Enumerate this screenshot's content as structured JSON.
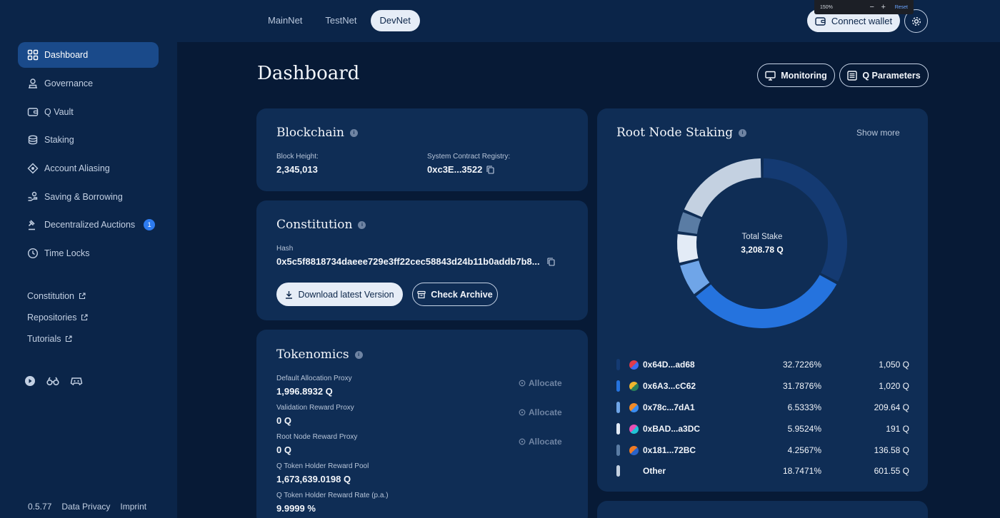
{
  "zoom": {
    "level": "150%",
    "minus": "−",
    "plus": "+",
    "reset": "Reset"
  },
  "networks": [
    "MainNet",
    "TestNet",
    "DevNet"
  ],
  "active_network": "DevNet",
  "header": {
    "connect_wallet": "Connect wallet"
  },
  "sidebar": {
    "items": [
      {
        "label": "Dashboard",
        "icon": "dashboard-icon",
        "active": true
      },
      {
        "label": "Governance",
        "icon": "governance-icon"
      },
      {
        "label": "Q Vault",
        "icon": "wallet-icon"
      },
      {
        "label": "Staking",
        "icon": "coins-icon"
      },
      {
        "label": "Account Aliasing",
        "icon": "alias-icon"
      },
      {
        "label": "Saving & Borrowing",
        "icon": "saving-icon"
      },
      {
        "label": "Decentralized Auctions",
        "icon": "gavel-icon",
        "badge": "1"
      },
      {
        "label": "Time Locks",
        "icon": "clock-icon"
      }
    ],
    "links": [
      "Constitution",
      "Repositories",
      "Tutorials"
    ],
    "footer": {
      "version": "0.5.77",
      "privacy": "Data Privacy",
      "imprint": "Imprint"
    }
  },
  "page": {
    "title": "Dashboard",
    "monitoring": "Monitoring",
    "q_parameters": "Q Parameters"
  },
  "blockchain": {
    "title": "Blockchain",
    "block_height_label": "Block Height:",
    "block_height": "2,345,013",
    "registry_label": "System Contract Registry:",
    "registry": "0xc3E...3522"
  },
  "constitution": {
    "title": "Constitution",
    "hash_label": "Hash",
    "hash": "0x5c5f8818734daeee729e3ff22cec58843d24b11b0addb7b8...",
    "download": "Download latest Version",
    "archive": "Check Archive"
  },
  "tokenomics": {
    "title": "Tokenomics",
    "allocate": "Allocate",
    "rows": [
      {
        "label": "Default Allocation Proxy",
        "value": "1,996.8932 Q",
        "allocate": true
      },
      {
        "label": "Validation Reward Proxy",
        "value": "0 Q",
        "allocate": true
      },
      {
        "label": "Root Node Reward Proxy",
        "value": "0 Q",
        "allocate": true
      },
      {
        "label": "Q Token Holder Reward Pool",
        "value": "1,673,639.0198 Q",
        "allocate": false
      },
      {
        "label": "Q Token Holder Reward Rate (p.a.)",
        "value": "9.9999 %",
        "allocate": false
      }
    ]
  },
  "staking": {
    "title": "Root Node Staking",
    "show_more": "Show more",
    "total_label": "Total Stake",
    "total_value": "3,208.78 Q"
  },
  "chart_data": {
    "type": "pie",
    "title": "Root Node Staking",
    "center_label": "Total Stake",
    "center_value": "3,208.78 Q",
    "categories": [
      "0x64D...ad68",
      "0x6A3...cC62",
      "0x78c...7dA1",
      "0xBAD...a3DC",
      "0x181...72BC",
      "Other"
    ],
    "values": [
      32.7226,
      31.7876,
      6.5333,
      5.9524,
      4.2567,
      18.7471
    ],
    "percent_labels": [
      "32.7226%",
      "31.7876%",
      "6.5333%",
      "5.9524%",
      "4.2567%",
      "18.7471%"
    ],
    "amount_labels": [
      "1,050 Q",
      "1,020 Q",
      "209.64 Q",
      "191 Q",
      "136.58 Q",
      "601.55 Q"
    ],
    "colors": [
      "#143a72",
      "#2573de",
      "#6fa5e8",
      "#e3ebf6",
      "#5a7ca4",
      "#c4d1e1"
    ],
    "avatar_colors": [
      [
        "#e23b4a",
        "#3c6cf0"
      ],
      [
        "#f0b62e",
        "#2a7f5a"
      ],
      [
        "#f08a26",
        "#3a8cf0"
      ],
      [
        "#e84fb4",
        "#22c3d6"
      ],
      [
        "#f07a24",
        "#2a63c8"
      ],
      null
    ]
  }
}
